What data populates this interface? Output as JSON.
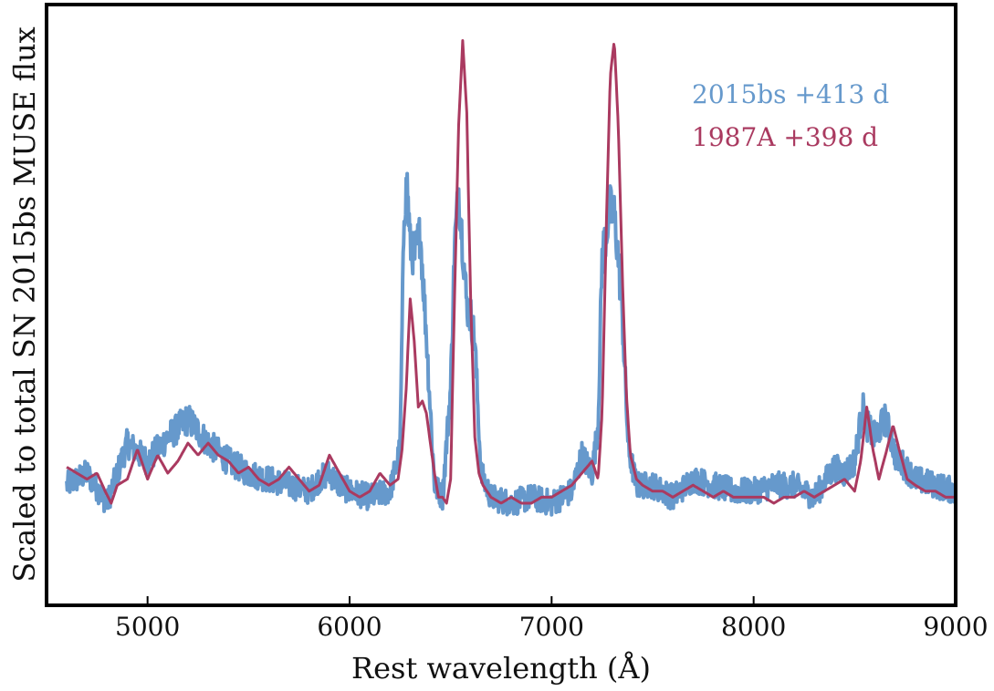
{
  "chart_data": {
    "type": "line",
    "title": "",
    "xlabel": "Rest wavelength (Å)",
    "ylabel": "Scaled to total SN 2015bs MUSE flux",
    "xlim": [
      4500,
      9000
    ],
    "ylim": [
      0,
      1.0
    ],
    "x_ticks": [
      5000,
      6000,
      7000,
      8000,
      9000
    ],
    "y_ticks_shown": false,
    "legend_position": "top-right",
    "series": [
      {
        "name": "2015bs +413 d",
        "color": "#6699cc",
        "style": "noisy",
        "x": [
          4600,
          4700,
          4800,
          4900,
          5000,
          5100,
          5200,
          5300,
          5400,
          5500,
          5600,
          5700,
          5800,
          5850,
          5900,
          5950,
          6000,
          6100,
          6200,
          6250,
          6270,
          6285,
          6300,
          6320,
          6350,
          6380,
          6420,
          6460,
          6500,
          6520,
          6540,
          6560,
          6580,
          6600,
          6620,
          6650,
          6700,
          6800,
          6900,
          7000,
          7100,
          7150,
          7200,
          7230,
          7250,
          7270,
          7290,
          7310,
          7330,
          7350,
          7380,
          7420,
          7500,
          7600,
          7700,
          7800,
          7900,
          8000,
          8100,
          8200,
          8300,
          8400,
          8450,
          8500,
          8540,
          8560,
          8600,
          8650,
          8680,
          8700,
          8750,
          8800,
          8900,
          9000
        ],
        "y": [
          0.2,
          0.22,
          0.17,
          0.27,
          0.24,
          0.28,
          0.31,
          0.27,
          0.24,
          0.22,
          0.21,
          0.2,
          0.19,
          0.21,
          0.22,
          0.2,
          0.19,
          0.18,
          0.19,
          0.26,
          0.66,
          0.7,
          0.6,
          0.58,
          0.62,
          0.45,
          0.2,
          0.18,
          0.36,
          0.6,
          0.69,
          0.6,
          0.5,
          0.48,
          0.44,
          0.22,
          0.18,
          0.17,
          0.18,
          0.17,
          0.19,
          0.25,
          0.22,
          0.3,
          0.58,
          0.62,
          0.66,
          0.65,
          0.58,
          0.48,
          0.26,
          0.2,
          0.2,
          0.18,
          0.21,
          0.2,
          0.19,
          0.19,
          0.2,
          0.2,
          0.18,
          0.23,
          0.22,
          0.24,
          0.33,
          0.3,
          0.28,
          0.31,
          0.28,
          0.25,
          0.23,
          0.21,
          0.2,
          0.19
        ]
      },
      {
        "name": "1987A +398 d",
        "color": "#aa3a60",
        "style": "smooth",
        "x": [
          4600,
          4650,
          4700,
          4750,
          4790,
          4820,
          4850,
          4900,
          4950,
          5000,
          5050,
          5100,
          5150,
          5200,
          5250,
          5300,
          5350,
          5400,
          5450,
          5500,
          5550,
          5600,
          5650,
          5700,
          5750,
          5800,
          5850,
          5900,
          5950,
          6000,
          6050,
          6100,
          6150,
          6200,
          6240,
          6260,
          6280,
          6300,
          6320,
          6340,
          6360,
          6380,
          6400,
          6420,
          6440,
          6460,
          6480,
          6500,
          6520,
          6540,
          6560,
          6580,
          6600,
          6620,
          6640,
          6660,
          6680,
          6700,
          6750,
          6800,
          6850,
          6900,
          6950,
          7000,
          7050,
          7100,
          7150,
          7200,
          7230,
          7250,
          7270,
          7290,
          7310,
          7330,
          7350,
          7370,
          7390,
          7420,
          7450,
          7500,
          7550,
          7600,
          7650,
          7700,
          7750,
          7800,
          7850,
          7900,
          7950,
          8000,
          8050,
          8100,
          8150,
          8200,
          8250,
          8300,
          8350,
          8400,
          8450,
          8500,
          8530,
          8560,
          8590,
          8620,
          8660,
          8690,
          8720,
          8760,
          8800,
          8850,
          8900,
          8950,
          9000
        ],
        "y": [
          0.23,
          0.22,
          0.21,
          0.22,
          0.19,
          0.17,
          0.2,
          0.21,
          0.26,
          0.21,
          0.25,
          0.22,
          0.24,
          0.27,
          0.25,
          0.27,
          0.25,
          0.24,
          0.22,
          0.23,
          0.21,
          0.2,
          0.21,
          0.23,
          0.21,
          0.19,
          0.2,
          0.25,
          0.22,
          0.19,
          0.18,
          0.19,
          0.22,
          0.2,
          0.21,
          0.26,
          0.36,
          0.51,
          0.44,
          0.33,
          0.34,
          0.32,
          0.27,
          0.22,
          0.18,
          0.18,
          0.17,
          0.21,
          0.52,
          0.8,
          0.94,
          0.82,
          0.5,
          0.28,
          0.22,
          0.2,
          0.19,
          0.18,
          0.17,
          0.18,
          0.17,
          0.17,
          0.18,
          0.18,
          0.19,
          0.2,
          0.22,
          0.24,
          0.21,
          0.32,
          0.62,
          0.88,
          0.94,
          0.8,
          0.55,
          0.35,
          0.25,
          0.21,
          0.2,
          0.19,
          0.19,
          0.18,
          0.19,
          0.2,
          0.19,
          0.18,
          0.19,
          0.18,
          0.18,
          0.18,
          0.18,
          0.17,
          0.18,
          0.18,
          0.19,
          0.18,
          0.19,
          0.2,
          0.21,
          0.19,
          0.24,
          0.33,
          0.26,
          0.21,
          0.26,
          0.3,
          0.26,
          0.21,
          0.2,
          0.19,
          0.19,
          0.18,
          0.18
        ]
      }
    ]
  }
}
